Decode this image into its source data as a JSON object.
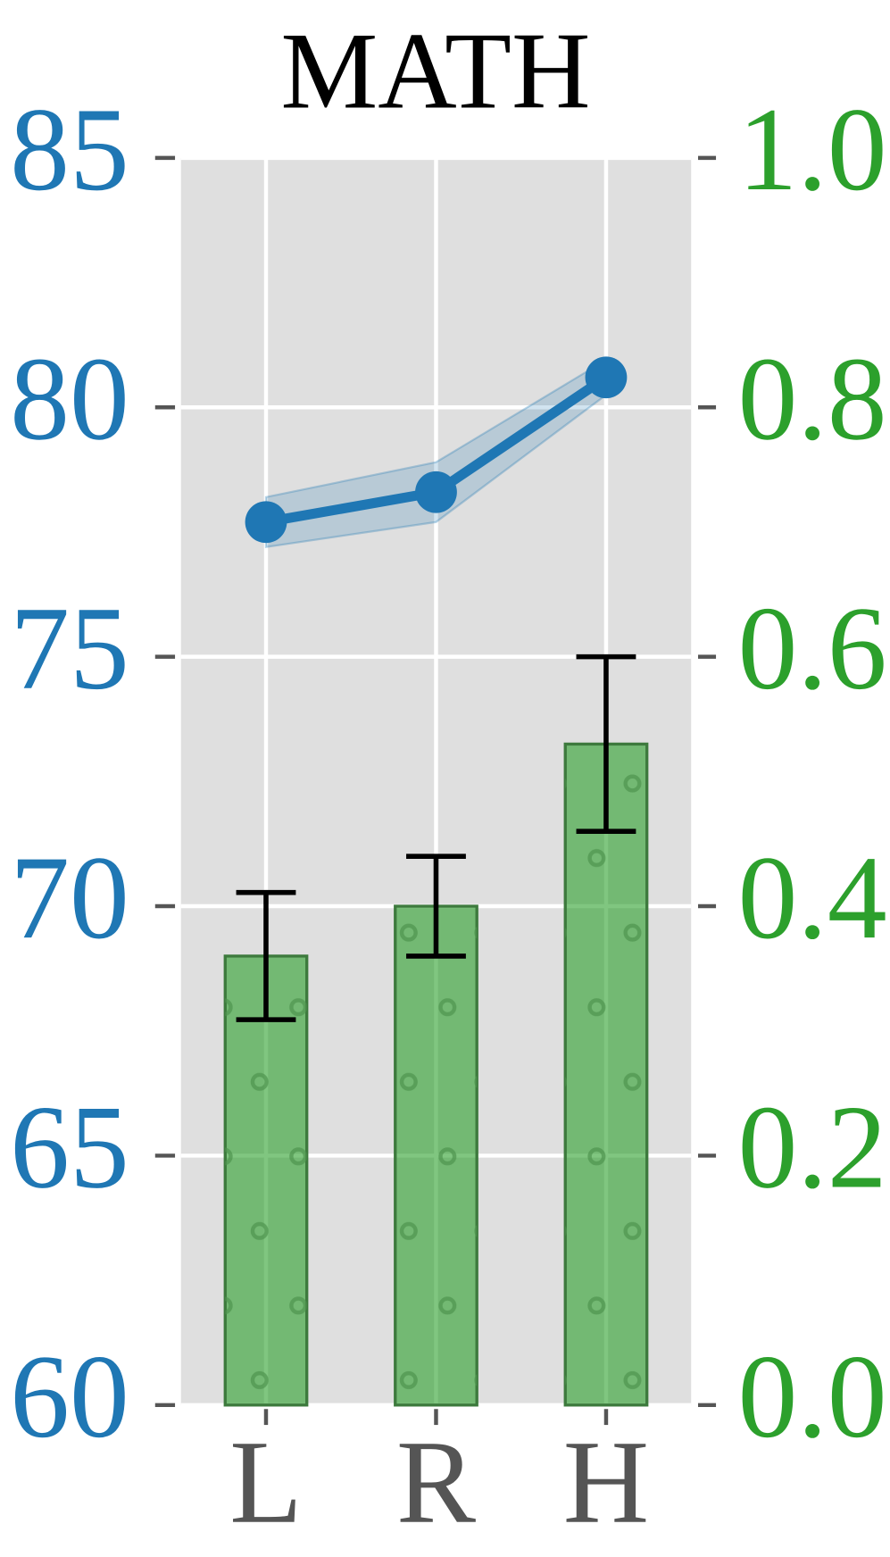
{
  "chart_data": {
    "type": "combo",
    "title": "MATH",
    "categories": [
      "L",
      "R",
      "H"
    ],
    "ylim": [
      60,
      85
    ],
    "yticks": [
      60,
      65,
      70,
      75,
      80,
      85
    ],
    "y2lim": [
      0,
      1
    ],
    "y2ticks": [
      {
        "value": 0,
        "label": "0.0"
      },
      {
        "value": 0.2,
        "label": "0.2"
      },
      {
        "value": 0.4,
        "label": "0.4"
      },
      {
        "value": 0.6,
        "label": "0.6"
      },
      {
        "value": 0.8,
        "label": "0.8"
      },
      {
        "value": 1,
        "label": "1.0"
      }
    ],
    "y_color": "#1f77b4",
    "y2_color": "#2ca02c",
    "grid": true,
    "series": [
      {
        "type": "bar",
        "axis": "y2",
        "color": "#2ca02c",
        "values": [
          0.36,
          0.4,
          0.53
        ],
        "errors": [
          0.051,
          0.04,
          0.07
        ]
      },
      {
        "type": "line",
        "color": "#1f77b4",
        "values": [
          77.7,
          78.3,
          80.6
        ],
        "band": [
          0.5,
          0.6,
          0.35
        ]
      }
    ]
  }
}
